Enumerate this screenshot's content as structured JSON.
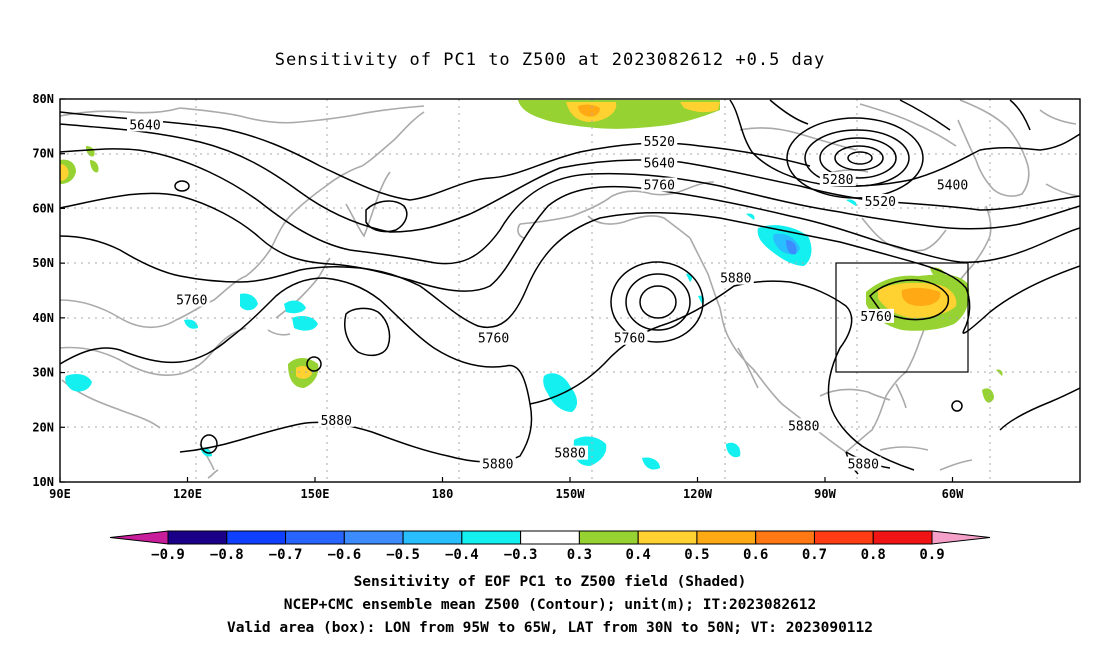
{
  "title": "Sensitivity of PC1 to Z500 at 2023082612 +0.5 day",
  "map": {
    "lat_labels": [
      "80N",
      "70N",
      "60N",
      "50N",
      "40N",
      "30N",
      "20N",
      "10N"
    ],
    "lon_labels": [
      "90E",
      "120E",
      "150E",
      "180",
      "150W",
      "120W",
      "90W",
      "60W"
    ],
    "lon_range": [
      90,
      330
    ],
    "lat_range": [
      10,
      80
    ],
    "gridlines": "dotted",
    "valid_box": {
      "lon": [
        -95,
        -65
      ],
      "lat": [
        30,
        50
      ]
    }
  },
  "contour_labels": [
    {
      "text": "5640",
      "lon": 110,
      "lat": 75
    },
    {
      "text": "5520",
      "lon": -129,
      "lat": 72
    },
    {
      "text": "5640",
      "lon": -129,
      "lat": 68
    },
    {
      "text": "5760",
      "lon": -129,
      "lat": 64
    },
    {
      "text": "5280",
      "lon": -87,
      "lat": 65
    },
    {
      "text": "5400",
      "lon": -60,
      "lat": 64
    },
    {
      "text": "5520",
      "lon": -77,
      "lat": 61
    },
    {
      "text": "5760",
      "lon": 121,
      "lat": 43
    },
    {
      "text": "5760",
      "lon": -168,
      "lat": 36
    },
    {
      "text": "5760",
      "lon": -136,
      "lat": 36
    },
    {
      "text": "5880",
      "lon": -111,
      "lat": 47
    },
    {
      "text": "5760",
      "lon": -78,
      "lat": 40
    },
    {
      "text": "5880",
      "lon": 155,
      "lat": 21
    },
    {
      "text": "5880",
      "lon": -167,
      "lat": 13
    },
    {
      "text": "5880",
      "lon": -150,
      "lat": 15
    },
    {
      "text": "5880",
      "lon": -95,
      "lat": 20
    },
    {
      "text": "5880",
      "lon": -81,
      "lat": 13
    }
  ],
  "colorbar": {
    "labels": [
      "−0.9",
      "−0.8",
      "−0.7",
      "−0.6",
      "−0.5",
      "−0.4",
      "−0.3",
      "0.3",
      "0.4",
      "0.5",
      "0.6",
      "0.7",
      "0.8",
      "0.9"
    ],
    "colors": [
      "#1a0088",
      "#1040ff",
      "#2864ff",
      "#3c8cff",
      "#28beff",
      "#14f0f0",
      "#ffffff",
      "#96d232",
      "#ffd232",
      "#ffaa14",
      "#ff7814",
      "#ff3c14",
      "#f01414"
    ],
    "left_end_color": "#c81e9b",
    "right_end_color": "#f5a0c8"
  },
  "caption": [
    "Sensitivity of EOF PC1 to Z500 field (Shaded)",
    "NCEP+CMC ensemble mean Z500 (Contour); unit(m); IT:2023082612",
    "Valid area (box): LON from 95W to 65W, LAT from 30N to 50N; VT: 2023090112"
  ]
}
